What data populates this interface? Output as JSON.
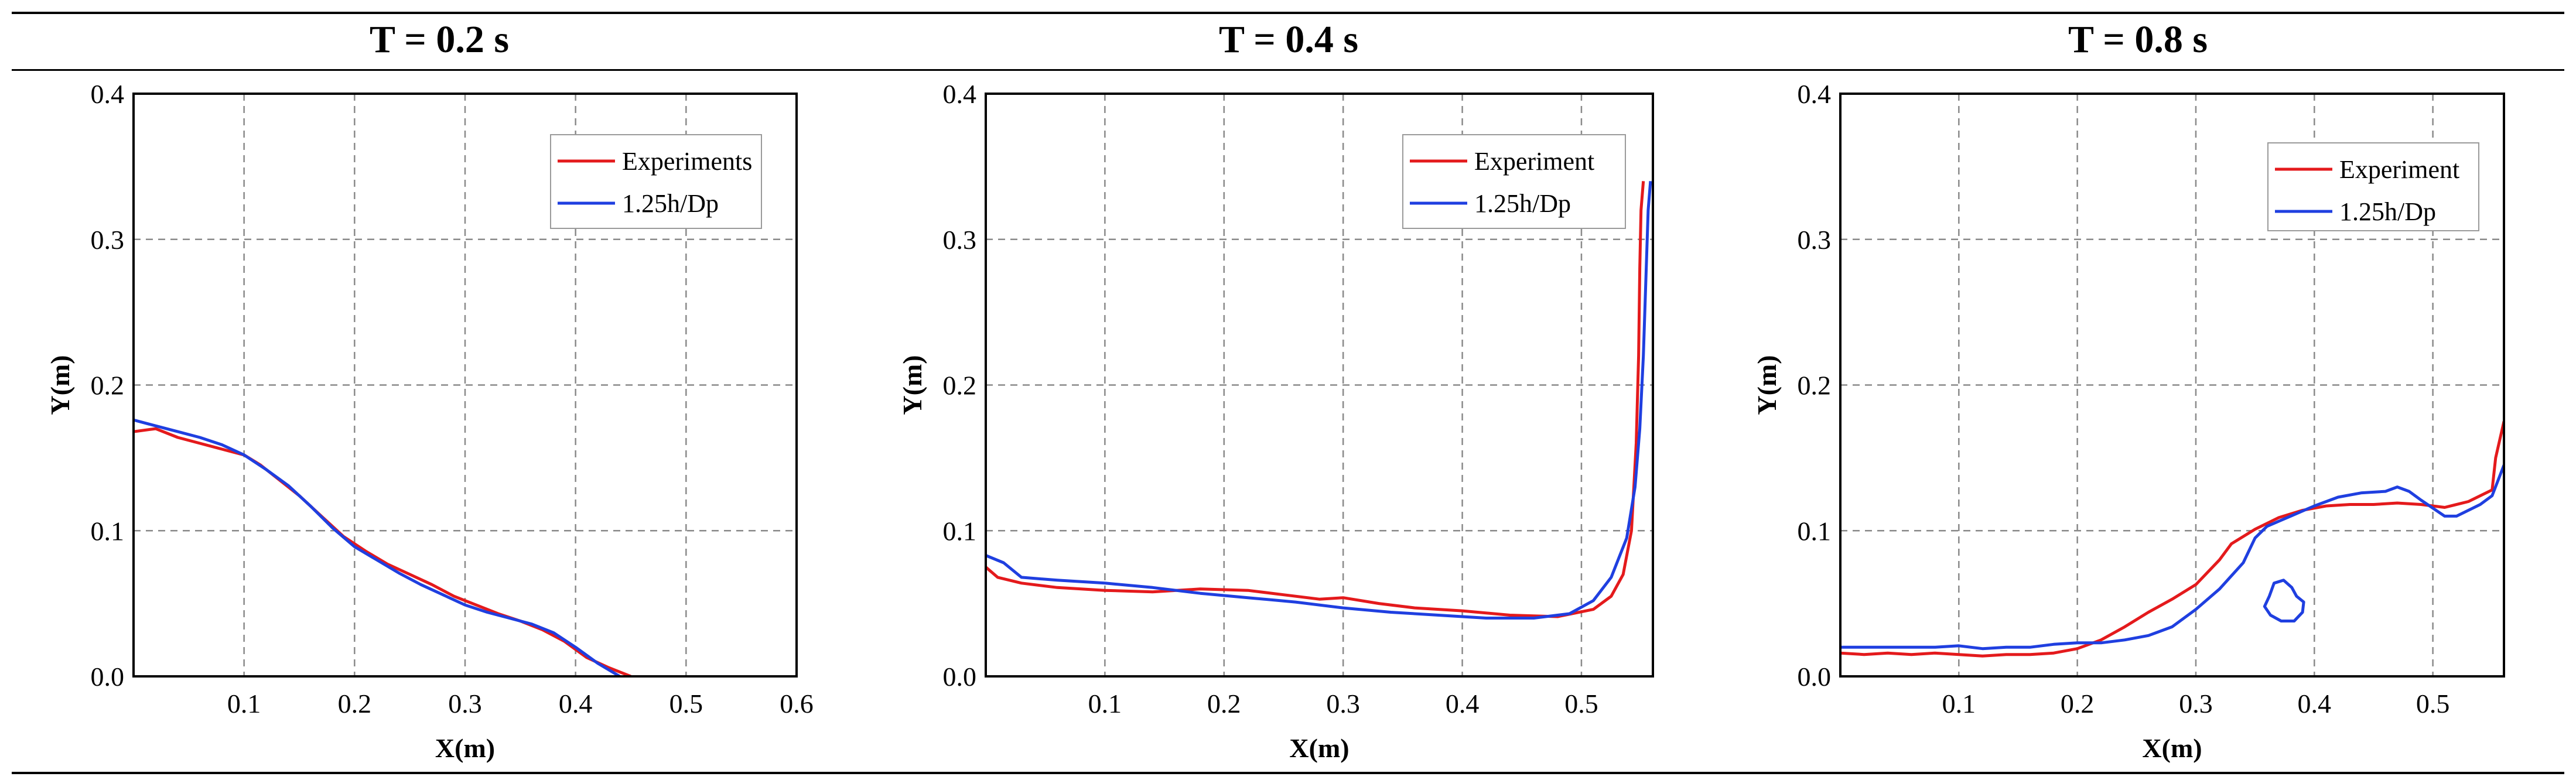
{
  "panels": [
    {
      "title": "T = 0.2 s"
    },
    {
      "title": "T = 0.4 s"
    },
    {
      "title": "T = 0.8 s"
    }
  ],
  "chart_data": [
    {
      "type": "line",
      "title": "T = 0.2 s",
      "xlabel": "X(m)",
      "ylabel": "Y(m)",
      "xlim": [
        0,
        0.6
      ],
      "ylim": [
        0,
        0.4
      ],
      "xticks": [
        0.1,
        0.2,
        0.3,
        0.4,
        0.5,
        0.6
      ],
      "yticks": [
        0.0,
        0.1,
        0.2,
        0.3,
        0.4
      ],
      "grid": true,
      "legend_position": "top-right",
      "series": [
        {
          "name": "Experiments",
          "color": "#e41a1c",
          "points": [
            [
              0.0,
              0.168
            ],
            [
              0.02,
              0.17
            ],
            [
              0.04,
              0.164
            ],
            [
              0.06,
              0.16
            ],
            [
              0.08,
              0.156
            ],
            [
              0.1,
              0.152
            ],
            [
              0.115,
              0.145
            ],
            [
              0.13,
              0.136
            ],
            [
              0.15,
              0.124
            ],
            [
              0.17,
              0.11
            ],
            [
              0.19,
              0.096
            ],
            [
              0.21,
              0.086
            ],
            [
              0.23,
              0.077
            ],
            [
              0.25,
              0.07
            ],
            [
              0.27,
              0.063
            ],
            [
              0.29,
              0.055
            ],
            [
              0.31,
              0.049
            ],
            [
              0.33,
              0.043
            ],
            [
              0.35,
              0.038
            ],
            [
              0.37,
              0.032
            ],
            [
              0.39,
              0.024
            ],
            [
              0.41,
              0.013
            ],
            [
              0.43,
              0.006
            ],
            [
              0.45,
              0.0
            ]
          ]
        },
        {
          "name": "1.25h/Dp",
          "color": "#1f3fe0",
          "points": [
            [
              0.0,
              0.176
            ],
            [
              0.02,
              0.172
            ],
            [
              0.04,
              0.168
            ],
            [
              0.06,
              0.164
            ],
            [
              0.08,
              0.159
            ],
            [
              0.1,
              0.152
            ],
            [
              0.12,
              0.142
            ],
            [
              0.14,
              0.131
            ],
            [
              0.16,
              0.117
            ],
            [
              0.18,
              0.102
            ],
            [
              0.2,
              0.089
            ],
            [
              0.22,
              0.08
            ],
            [
              0.24,
              0.071
            ],
            [
              0.26,
              0.063
            ],
            [
              0.28,
              0.056
            ],
            [
              0.3,
              0.049
            ],
            [
              0.32,
              0.044
            ],
            [
              0.34,
              0.04
            ],
            [
              0.36,
              0.036
            ],
            [
              0.38,
              0.03
            ],
            [
              0.4,
              0.02
            ],
            [
              0.42,
              0.009
            ],
            [
              0.44,
              0.0
            ]
          ]
        }
      ]
    },
    {
      "type": "line",
      "title": "T = 0.4 s",
      "xlabel": "X(m)",
      "ylabel": "Y(m)",
      "xlim": [
        0,
        0.56
      ],
      "ylim": [
        0,
        0.4
      ],
      "xticks": [
        0.1,
        0.2,
        0.3,
        0.4,
        0.5
      ],
      "yticks": [
        0.0,
        0.1,
        0.2,
        0.3,
        0.4
      ],
      "grid": true,
      "legend_position": "top-right",
      "series": [
        {
          "name": "Experiment",
          "color": "#e41a1c",
          "points": [
            [
              0.0,
              0.075
            ],
            [
              0.01,
              0.068
            ],
            [
              0.03,
              0.064
            ],
            [
              0.06,
              0.061
            ],
            [
              0.1,
              0.059
            ],
            [
              0.14,
              0.058
            ],
            [
              0.18,
              0.06
            ],
            [
              0.22,
              0.059
            ],
            [
              0.25,
              0.056
            ],
            [
              0.28,
              0.053
            ],
            [
              0.3,
              0.054
            ],
            [
              0.33,
              0.05
            ],
            [
              0.36,
              0.047
            ],
            [
              0.4,
              0.045
            ],
            [
              0.44,
              0.042
            ],
            [
              0.48,
              0.041
            ],
            [
              0.51,
              0.046
            ],
            [
              0.525,
              0.055
            ],
            [
              0.535,
              0.07
            ],
            [
              0.542,
              0.1
            ],
            [
              0.546,
              0.16
            ],
            [
              0.548,
              0.22
            ],
            [
              0.549,
              0.28
            ],
            [
              0.55,
              0.32
            ],
            [
              0.552,
              0.34
            ]
          ]
        },
        {
          "name": "1.25h/Dp",
          "color": "#1f3fe0",
          "points": [
            [
              0.0,
              0.083
            ],
            [
              0.015,
              0.078
            ],
            [
              0.03,
              0.068
            ],
            [
              0.06,
              0.066
            ],
            [
              0.1,
              0.064
            ],
            [
              0.14,
              0.061
            ],
            [
              0.18,
              0.057
            ],
            [
              0.22,
              0.054
            ],
            [
              0.26,
              0.051
            ],
            [
              0.3,
              0.047
            ],
            [
              0.34,
              0.044
            ],
            [
              0.38,
              0.042
            ],
            [
              0.42,
              0.04
            ],
            [
              0.46,
              0.04
            ],
            [
              0.49,
              0.043
            ],
            [
              0.51,
              0.052
            ],
            [
              0.525,
              0.068
            ],
            [
              0.538,
              0.095
            ],
            [
              0.545,
              0.13
            ],
            [
              0.549,
              0.17
            ],
            [
              0.552,
              0.22
            ],
            [
              0.554,
              0.27
            ],
            [
              0.556,
              0.32
            ],
            [
              0.558,
              0.34
            ]
          ]
        }
      ]
    },
    {
      "type": "line",
      "title": "T = 0.8 s",
      "xlabel": "X(m)",
      "ylabel": "Y(m)",
      "xlim": [
        0,
        0.56
      ],
      "ylim": [
        0,
        0.4
      ],
      "xticks": [
        0.1,
        0.2,
        0.3,
        0.4,
        0.5
      ],
      "yticks": [
        0.0,
        0.1,
        0.2,
        0.3,
        0.4
      ],
      "grid": true,
      "legend_position": "top-right",
      "series": [
        {
          "name": "Experiment",
          "color": "#e41a1c",
          "points": [
            [
              0.0,
              0.016
            ],
            [
              0.02,
              0.015
            ],
            [
              0.04,
              0.016
            ],
            [
              0.06,
              0.015
            ],
            [
              0.08,
              0.016
            ],
            [
              0.1,
              0.015
            ],
            [
              0.12,
              0.014
            ],
            [
              0.14,
              0.015
            ],
            [
              0.16,
              0.015
            ],
            [
              0.18,
              0.016
            ],
            [
              0.2,
              0.019
            ],
            [
              0.22,
              0.025
            ],
            [
              0.24,
              0.034
            ],
            [
              0.26,
              0.044
            ],
            [
              0.28,
              0.053
            ],
            [
              0.3,
              0.063
            ],
            [
              0.32,
              0.08
            ],
            [
              0.33,
              0.091
            ],
            [
              0.35,
              0.101
            ],
            [
              0.37,
              0.109
            ],
            [
              0.39,
              0.114
            ],
            [
              0.41,
              0.117
            ],
            [
              0.43,
              0.118
            ],
            [
              0.45,
              0.118
            ],
            [
              0.47,
              0.119
            ],
            [
              0.49,
              0.118
            ],
            [
              0.51,
              0.116
            ],
            [
              0.53,
              0.12
            ],
            [
              0.55,
              0.128
            ],
            [
              0.553,
              0.15
            ],
            [
              0.56,
              0.175
            ]
          ]
        },
        {
          "name": "1.25h/Dp",
          "color": "#1f3fe0",
          "points": [
            [
              0.0,
              0.02
            ],
            [
              0.04,
              0.02
            ],
            [
              0.08,
              0.02
            ],
            [
              0.1,
              0.021
            ],
            [
              0.12,
              0.019
            ],
            [
              0.14,
              0.02
            ],
            [
              0.16,
              0.02
            ],
            [
              0.18,
              0.022
            ],
            [
              0.2,
              0.023
            ],
            [
              0.22,
              0.023
            ],
            [
              0.24,
              0.025
            ],
            [
              0.26,
              0.028
            ],
            [
              0.28,
              0.034
            ],
            [
              0.3,
              0.046
            ],
            [
              0.32,
              0.06
            ],
            [
              0.34,
              0.078
            ],
            [
              0.35,
              0.095
            ],
            [
              0.36,
              0.103
            ],
            [
              0.38,
              0.11
            ],
            [
              0.4,
              0.117
            ],
            [
              0.42,
              0.123
            ],
            [
              0.44,
              0.126
            ],
            [
              0.46,
              0.127
            ],
            [
              0.47,
              0.13
            ],
            [
              0.48,
              0.127
            ],
            [
              0.49,
              0.121
            ],
            [
              0.51,
              0.11
            ],
            [
              0.52,
              0.11
            ],
            [
              0.54,
              0.118
            ],
            [
              0.55,
              0.124
            ],
            [
              0.56,
              0.145
            ]
          ]
        },
        {
          "name": "1.25h/Dp droplet",
          "color": "#1f3fe0",
          "closed": true,
          "legend": false,
          "points": [
            [
              0.362,
              0.055
            ],
            [
              0.366,
              0.064
            ],
            [
              0.374,
              0.066
            ],
            [
              0.381,
              0.061
            ],
            [
              0.385,
              0.055
            ],
            [
              0.391,
              0.051
            ],
            [
              0.39,
              0.044
            ],
            [
              0.383,
              0.038
            ],
            [
              0.372,
              0.038
            ],
            [
              0.363,
              0.042
            ],
            [
              0.358,
              0.048
            ],
            [
              0.362,
              0.055
            ]
          ]
        }
      ]
    }
  ]
}
